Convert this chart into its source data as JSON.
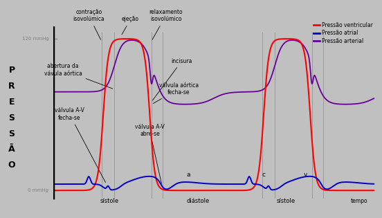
{
  "bg_color": "#c0c0c0",
  "ventricular_color": "#ff0000",
  "atrial_color": "#0000cc",
  "arterial_color": "#660099",
  "legend_labels": [
    "Pressão ventricular",
    "Pressão atrial",
    "Pressão arterial"
  ],
  "y_label_120": "120 mmHg",
  "y_label_0": "0 mmHg",
  "ylabel_chars": [
    "P",
    "R",
    "E",
    "S",
    "S",
    "Ã",
    "O"
  ]
}
